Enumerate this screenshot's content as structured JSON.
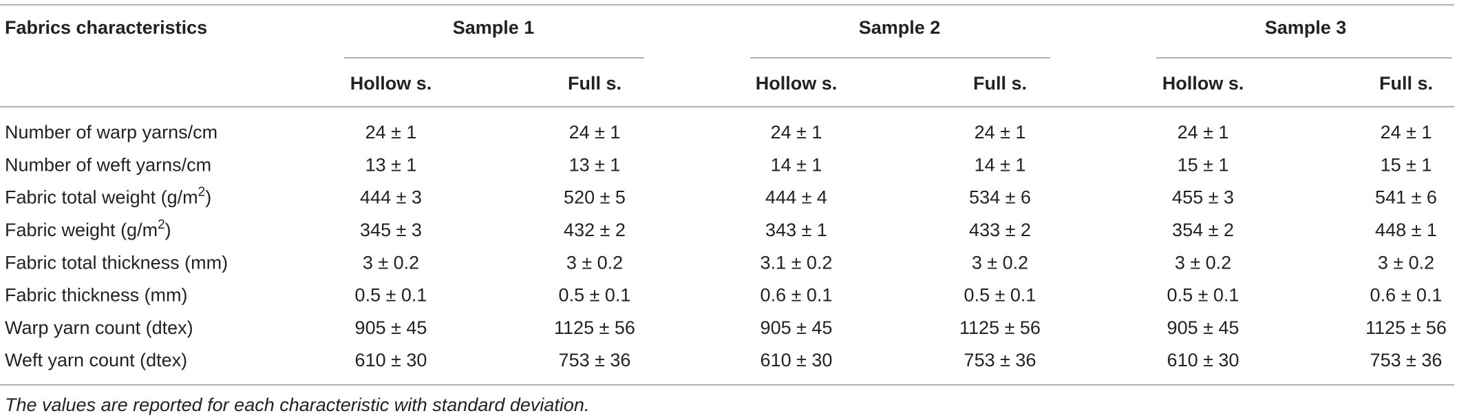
{
  "table": {
    "corner": "Fabrics characteristics",
    "groups": [
      "Sample 1",
      "Sample 2",
      "Sample 3"
    ],
    "subheaders": [
      "Hollow s.",
      "Full s.",
      "Hollow s.",
      "Full s.",
      "Hollow s.",
      "Full s."
    ],
    "rows": [
      {
        "label": "Number of warp yarns/cm",
        "cells": [
          "24 ± 1",
          "24 ± 1",
          "24 ± 1",
          "24 ± 1",
          "24 ± 1",
          "24 ± 1"
        ]
      },
      {
        "label": "Number of weft yarns/cm",
        "cells": [
          "13 ± 1",
          "13 ± 1",
          "14 ± 1",
          "14 ± 1",
          "15 ± 1",
          "15 ± 1"
        ]
      },
      {
        "label": {
          "before": "Fabric total weight (g/m",
          "sup": "2",
          "after": ")"
        },
        "cells": [
          "444 ± 3",
          "520 ± 5",
          "444 ± 4",
          "534 ± 6",
          "455 ± 3",
          "541 ± 6"
        ]
      },
      {
        "label": {
          "before": "Fabric weight (g/m",
          "sup": "2",
          "after": ")"
        },
        "cells": [
          "345 ± 3",
          "432 ± 2",
          "343 ± 1",
          "433 ± 2",
          "354 ± 2",
          "448 ± 1"
        ]
      },
      {
        "label": "Fabric total thickness (mm)",
        "cells": [
          "3 ± 0.2",
          "3 ± 0.2",
          "3.1 ± 0.2",
          "3 ± 0.2",
          "3 ± 0.2",
          "3 ± 0.2"
        ]
      },
      {
        "label": "Fabric thickness (mm)",
        "cells": [
          "0.5 ± 0.1",
          "0.5 ± 0.1",
          "0.6 ± 0.1",
          "0.5 ± 0.1",
          "0.5 ± 0.1",
          "0.6 ± 0.1"
        ]
      },
      {
        "label": "Warp yarn count (dtex)",
        "cells": [
          "905 ± 45",
          "1125 ± 56",
          "905 ± 45",
          "1125 ± 56",
          "905 ± 45",
          "1125 ± 56"
        ]
      },
      {
        "label": "Weft yarn count (dtex)",
        "cells": [
          "610 ± 30",
          "753 ± 36",
          "610 ± 30",
          "753 ± 36",
          "610 ± 30",
          "753 ± 36"
        ]
      }
    ],
    "footnote": "The values are reported for each characteristic with standard deviation."
  }
}
